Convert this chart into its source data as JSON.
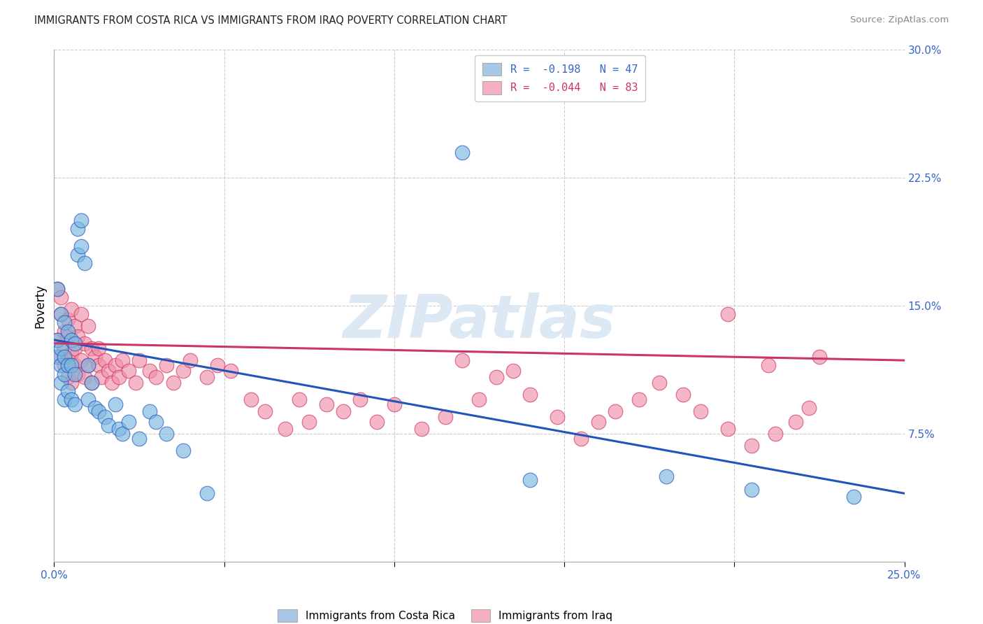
{
  "title": "IMMIGRANTS FROM COSTA RICA VS IMMIGRANTS FROM IRAQ POVERTY CORRELATION CHART",
  "source": "Source: ZipAtlas.com",
  "ylabel": "Poverty",
  "xlim": [
    0.0,
    0.25
  ],
  "ylim": [
    0.0,
    0.3
  ],
  "ytick_vals_right": [
    0.075,
    0.15,
    0.225,
    0.3
  ],
  "ytick_labels_right": [
    "7.5%",
    "15.0%",
    "22.5%",
    "30.0%"
  ],
  "legend_cr_label": "R =  -0.198   N = 47",
  "legend_iq_label": "R =  -0.044   N = 83",
  "legend_cr_color": "#a8c8e8",
  "legend_iq_color": "#f4b0c0",
  "costa_rica_color": "#7ab8e0",
  "iraq_color": "#f090a8",
  "trendline_cr_color": "#2255bb",
  "trendline_iq_color": "#cc3366",
  "background_color": "#ffffff",
  "watermark_color": "#dde8f5",
  "grid_color": "#cccccc",
  "axis_label_color": "#3366cc",
  "title_color": "#222222",
  "source_color": "#888888",
  "cr_trendline_start_y": 0.13,
  "cr_trendline_end_y": 0.04,
  "iq_trendline_start_y": 0.128,
  "iq_trendline_end_y": 0.118,
  "costa_rica_x": [
    0.001,
    0.001,
    0.001,
    0.002,
    0.002,
    0.002,
    0.002,
    0.003,
    0.003,
    0.003,
    0.003,
    0.004,
    0.004,
    0.004,
    0.005,
    0.005,
    0.005,
    0.006,
    0.006,
    0.006,
    0.007,
    0.007,
    0.008,
    0.008,
    0.009,
    0.01,
    0.01,
    0.011,
    0.012,
    0.013,
    0.015,
    0.016,
    0.018,
    0.019,
    0.02,
    0.022,
    0.025,
    0.028,
    0.03,
    0.033,
    0.038,
    0.045,
    0.12,
    0.14,
    0.18,
    0.205,
    0.235
  ],
  "costa_rica_y": [
    0.16,
    0.13,
    0.12,
    0.145,
    0.125,
    0.115,
    0.105,
    0.14,
    0.12,
    0.11,
    0.095,
    0.135,
    0.115,
    0.1,
    0.13,
    0.115,
    0.095,
    0.128,
    0.11,
    0.092,
    0.195,
    0.18,
    0.2,
    0.185,
    0.175,
    0.115,
    0.095,
    0.105,
    0.09,
    0.088,
    0.085,
    0.08,
    0.092,
    0.078,
    0.075,
    0.082,
    0.072,
    0.088,
    0.082,
    0.075,
    0.065,
    0.04,
    0.24,
    0.048,
    0.05,
    0.042,
    0.038
  ],
  "iraq_x": [
    0.001,
    0.001,
    0.002,
    0.002,
    0.002,
    0.003,
    0.003,
    0.003,
    0.004,
    0.004,
    0.004,
    0.004,
    0.005,
    0.005,
    0.005,
    0.006,
    0.006,
    0.006,
    0.007,
    0.007,
    0.008,
    0.008,
    0.009,
    0.009,
    0.01,
    0.01,
    0.011,
    0.011,
    0.012,
    0.013,
    0.013,
    0.014,
    0.015,
    0.016,
    0.017,
    0.018,
    0.019,
    0.02,
    0.022,
    0.024,
    0.025,
    0.028,
    0.03,
    0.033,
    0.035,
    0.038,
    0.04,
    0.045,
    0.048,
    0.052,
    0.058,
    0.062,
    0.068,
    0.072,
    0.075,
    0.08,
    0.085,
    0.09,
    0.095,
    0.1,
    0.108,
    0.115,
    0.12,
    0.125,
    0.13,
    0.135,
    0.14,
    0.148,
    0.155,
    0.16,
    0.165,
    0.172,
    0.178,
    0.185,
    0.19,
    0.198,
    0.205,
    0.212,
    0.218,
    0.222,
    0.198,
    0.21,
    0.225
  ],
  "iraq_y": [
    0.16,
    0.13,
    0.145,
    0.12,
    0.155,
    0.135,
    0.115,
    0.125,
    0.142,
    0.118,
    0.108,
    0.132,
    0.148,
    0.122,
    0.105,
    0.138,
    0.115,
    0.125,
    0.132,
    0.11,
    0.145,
    0.118,
    0.128,
    0.108,
    0.138,
    0.115,
    0.125,
    0.105,
    0.12,
    0.115,
    0.125,
    0.108,
    0.118,
    0.112,
    0.105,
    0.115,
    0.108,
    0.118,
    0.112,
    0.105,
    0.118,
    0.112,
    0.108,
    0.115,
    0.105,
    0.112,
    0.118,
    0.108,
    0.115,
    0.112,
    0.095,
    0.088,
    0.078,
    0.095,
    0.082,
    0.092,
    0.088,
    0.095,
    0.082,
    0.092,
    0.078,
    0.085,
    0.118,
    0.095,
    0.108,
    0.112,
    0.098,
    0.085,
    0.072,
    0.082,
    0.088,
    0.095,
    0.105,
    0.098,
    0.088,
    0.078,
    0.068,
    0.075,
    0.082,
    0.09,
    0.145,
    0.115,
    0.12
  ]
}
